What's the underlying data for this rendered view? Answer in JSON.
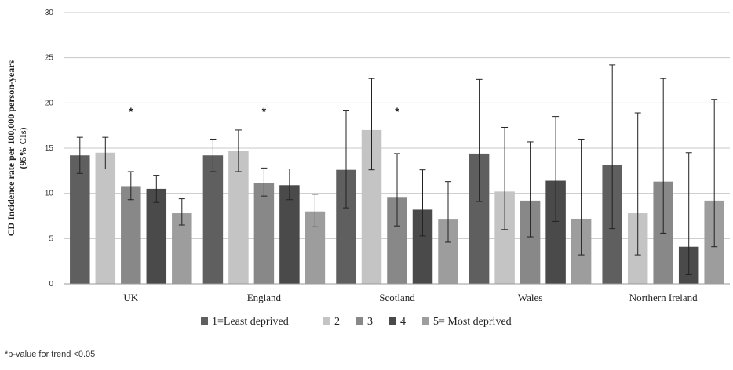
{
  "chart_data": {
    "type": "bar",
    "ylabel": "CD Incidence rate per 100,000 person-years (95% CIs)",
    "ylabel_lines": [
      "CD Incidence rate per 100,000 person-years",
      "(95% CIs)"
    ],
    "ylim": [
      0,
      30
    ],
    "yticks": [
      "0",
      "5",
      "10",
      "15",
      "20",
      "25",
      "30"
    ],
    "grid": true,
    "legend_position": "bottom",
    "categories": [
      "UK",
      "England",
      "Scotland",
      "Wales",
      "Northern Ireland"
    ],
    "series": [
      {
        "name": "1=Least deprived",
        "color": "#5f5f5f",
        "values": [
          14.2,
          14.2,
          12.6,
          14.4,
          13.1
        ],
        "ci_low": [
          12.2,
          12.4,
          8.4,
          9.1,
          6.1
        ],
        "ci_high": [
          16.2,
          16.0,
          19.2,
          22.6,
          24.2
        ]
      },
      {
        "name": "2",
        "color": "#c4c4c4",
        "values": [
          14.5,
          14.7,
          17.0,
          10.2,
          7.8
        ],
        "ci_low": [
          12.7,
          12.4,
          12.6,
          6.0,
          3.2
        ],
        "ci_high": [
          16.2,
          17.0,
          22.7,
          17.3,
          18.9
        ]
      },
      {
        "name": "3",
        "color": "#888888",
        "values": [
          10.8,
          11.1,
          9.6,
          9.2,
          11.3
        ],
        "ci_low": [
          9.3,
          9.7,
          6.4,
          5.2,
          5.6
        ],
        "ci_high": [
          12.4,
          12.8,
          14.4,
          15.7,
          22.7
        ]
      },
      {
        "name": "4",
        "color": "#4a4a4a",
        "values": [
          10.5,
          10.9,
          8.2,
          11.4,
          4.1
        ],
        "ci_low": [
          9.0,
          9.3,
          5.3,
          6.9,
          1.0
        ],
        "ci_high": [
          12.0,
          12.7,
          12.6,
          18.5,
          14.5
        ]
      },
      {
        "name": "5= Most deprived",
        "color": "#9d9d9d",
        "values": [
          7.8,
          8.0,
          7.1,
          7.2,
          9.2
        ],
        "ci_low": [
          6.5,
          6.3,
          4.6,
          3.2,
          4.1
        ],
        "ci_high": [
          9.4,
          9.9,
          11.3,
          16.0,
          20.4
        ]
      }
    ],
    "significance_markers": [
      {
        "category": "UK",
        "symbol": "*"
      },
      {
        "category": "England",
        "symbol": "*"
      },
      {
        "category": "Scotland",
        "symbol": "*"
      }
    ]
  },
  "footnote": "*p-value for trend <0.05"
}
